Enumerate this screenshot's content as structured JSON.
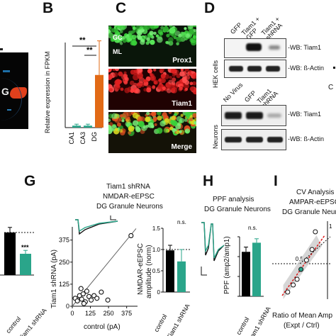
{
  "panels": {
    "B": "B",
    "C": "C",
    "D": "D",
    "G": "G",
    "H": "H",
    "I": "I"
  },
  "panel_A_fragment": {
    "label": "G"
  },
  "panel_B": {
    "ylabel": "Relative expression in FPKM",
    "sig1": "**",
    "sig2": "**",
    "chart_data": {
      "type": "bar",
      "categories": [
        "CA1",
        "CA3",
        "DG"
      ],
      "values": [
        4,
        4,
        108
      ],
      "errors": [
        3,
        3,
        70
      ],
      "colors": [
        "#2aa58a",
        "#2aa58a",
        "#e26a16"
      ],
      "ylim": [
        0,
        200
      ]
    }
  },
  "panel_C": {
    "top_label": "Prox1",
    "top_gc": "GC",
    "top_ml": "ML",
    "mid_label": "Tiam1",
    "bot_label": "Merge"
  },
  "panel_D": {
    "hek_lanes": [
      "GFP",
      "Tiam1 + GFP",
      "Tiam1 + shRNA"
    ],
    "hek_group": "HEK cells",
    "hek_wb1": "-WB: Tiam1",
    "hek_wb2": "-WB: ß-Actin",
    "neu_lanes": [
      "No Virus",
      "GFP",
      "Tiam1 shRNA"
    ],
    "neu_group": "Neurons",
    "neu_wb1": "-WB: Tiam1",
    "neu_wb2": "-WB: ß-Actin",
    "edge_fragment": "C"
  },
  "panel_G_left": {
    "xticks": [
      "control",
      "Tiam1 shRNA"
    ],
    "sig": "***",
    "chart_data": {
      "type": "bar",
      "categories": [
        "control",
        "Tiam1 shRNA"
      ],
      "values": [
        1.0,
        0.5
      ],
      "errors": [
        0.12,
        0.08
      ],
      "colors": [
        "#000000",
        "#2aa58a"
      ]
    }
  },
  "panel_G_scatter": {
    "title1": "Tiam1 shRNA",
    "title2": "NMDAR-eEPSC",
    "title3": "DG Granule Neurons",
    "xlabel": "control (pA)",
    "ylabel": "Tiam1 shRNA (pA)",
    "chart_data": {
      "type": "scatter",
      "xticks": [
        "0",
        "125",
        "250",
        "375"
      ],
      "yticks": [
        "0",
        "125",
        "250",
        "375"
      ],
      "xlim": [
        0,
        450
      ],
      "ylim": [
        0,
        450
      ],
      "points": [
        [
          20,
          45
        ],
        [
          35,
          30
        ],
        [
          50,
          60
        ],
        [
          65,
          40
        ],
        [
          75,
          70
        ],
        [
          90,
          25
        ],
        [
          100,
          85
        ],
        [
          115,
          55
        ],
        [
          130,
          35
        ],
        [
          150,
          60
        ],
        [
          170,
          45
        ],
        [
          200,
          80
        ],
        [
          245,
          35
        ],
        [
          405,
          400
        ],
        [
          60,
          100
        ],
        [
          80,
          15
        ]
      ]
    }
  },
  "panel_G_bar": {
    "ylabel1": "NMDAR-eEPSC",
    "ylabel2": "amplitude (norm)",
    "ns": "n.s.",
    "xticks": [
      "control",
      "Tiam1 shRNA"
    ],
    "yticks": [
      "0",
      "0.5",
      "1.0",
      "1.5"
    ],
    "chart_data": {
      "type": "bar",
      "categories": [
        "control",
        "Tiam1 shRNA"
      ],
      "values": [
        0.98,
        0.72
      ],
      "errors": [
        0.12,
        0.28
      ],
      "colors": [
        "#000000",
        "#2aa58a"
      ],
      "ylim": [
        0,
        1.5
      ]
    }
  },
  "panel_H": {
    "title1": "PPF analysis",
    "title2": "DG Granule Neurons",
    "ylabel": "PPF (amp2/amp1)",
    "ns": "n.s.",
    "xticks": [
      "control",
      "Tiam1 shRNA"
    ],
    "yticks": [
      "0",
      "0.5",
      "1.0",
      "1.5"
    ],
    "chart_data": {
      "type": "bar",
      "categories": [
        "control",
        "Tiam1 shRNA"
      ],
      "values": [
        1.12,
        1.35
      ],
      "errors": [
        0.12,
        0.1
      ],
      "colors": [
        "#000000",
        "#2aa58a"
      ],
      "ylim": [
        0,
        1.5
      ]
    }
  },
  "panel_I": {
    "title1": "CV Analysis",
    "title2": "AMPAR-eEPSC",
    "title3": "DG Granule Neuro",
    "xlabel1": "Ratio of Mean Amp",
    "xlabel2": "(Expt / Ctrl)",
    "tick_05": "0.5",
    "tick_1": "1",
    "chart_data": {
      "type": "scatter",
      "points": [
        [
          0.28,
          0.1
        ],
        [
          0.38,
          0.2
        ],
        [
          0.45,
          0.28
        ],
        [
          0.52,
          0.42
        ],
        [
          0.62,
          0.55
        ],
        [
          0.72,
          0.7
        ],
        [
          0.78,
          0.95
        ]
      ]
    }
  }
}
